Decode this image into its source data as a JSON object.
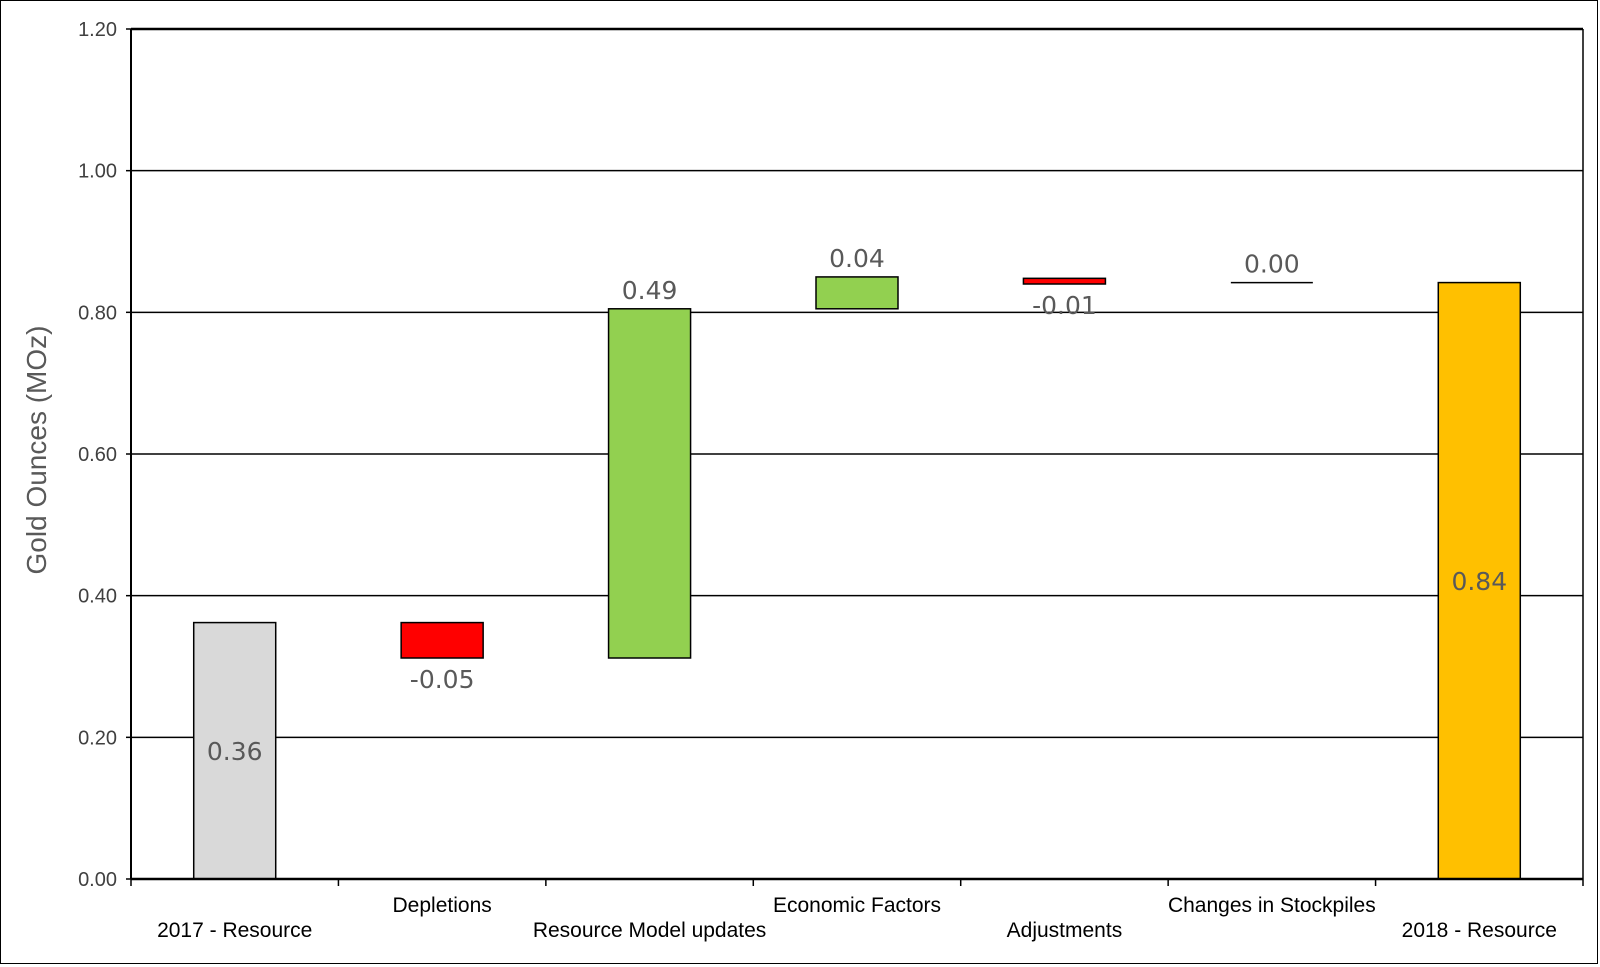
{
  "chart_data": {
    "type": "waterfall",
    "title": "",
    "xlabel": "",
    "ylabel": "Gold Ounces (MOz)",
    "ylim": [
      0,
      1.2
    ],
    "yticks": [
      0.0,
      0.2,
      0.4,
      0.6,
      0.8,
      1.0,
      1.2
    ],
    "ytick_labels": [
      "0.00",
      "0.20",
      "0.40",
      "0.60",
      "0.80",
      "1.00",
      "1.20"
    ],
    "grid": true,
    "categories": [
      "2017 - Resource",
      "Depletions",
      "Resource Model updates",
      "Economic Factors",
      "Adjustments",
      "Changes in Stockpiles",
      "2018 - Resource"
    ],
    "values": [
      0.36,
      -0.05,
      0.49,
      0.04,
      -0.01,
      0.0,
      0.84
    ],
    "kinds": [
      "total",
      "delta",
      "delta",
      "delta",
      "delta",
      "delta",
      "total"
    ],
    "bar_bottoms": [
      0.0,
      0.312,
      0.312,
      0.805,
      0.84,
      0.842,
      0.0
    ],
    "bar_tops": [
      0.362,
      0.362,
      0.805,
      0.85,
      0.848,
      0.842,
      0.842
    ],
    "data_labels": [
      "0.36",
      "-0.05",
      "0.49",
      "0.04",
      "-0.01",
      "0.00",
      "0.84"
    ],
    "label_positions": [
      "center",
      "below",
      "above",
      "above",
      "below",
      "above",
      "center"
    ],
    "label_rows": [
      1,
      0,
      1,
      0,
      1,
      0,
      1
    ],
    "colors": {
      "start_total": "#D9D9D9",
      "increase": "#92D050",
      "decrease": "#FF0000",
      "end_total": "#FFC000",
      "zero": "#000000"
    },
    "bar_colors": [
      "#D9D9D9",
      "#FF0000",
      "#92D050",
      "#92D050",
      "#FF0000",
      "#000000",
      "#FFC000"
    ]
  }
}
